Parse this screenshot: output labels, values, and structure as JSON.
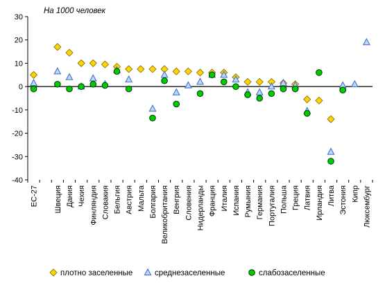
{
  "chart_data": {
    "type": "scatter",
    "unit_label": "На 1000 человек",
    "ylim": [
      -40,
      30
    ],
    "y_ticks": [
      30,
      20,
      10,
      0,
      -10,
      -20,
      -30,
      -40
    ],
    "grid": false,
    "legend_position": "bottom",
    "categories": [
      "ЕС-27",
      "",
      "Швеция",
      "Дания",
      "Чехия",
      "Финляндия",
      "Словакия",
      "Бельгия",
      "Австрия",
      "Мальта",
      "Болгария",
      "Великобритания",
      "Венгрия",
      "Словения",
      "Нидерланды",
      "Франция",
      "Италия",
      "Испания",
      "Румыния",
      "Германия",
      "Португалия",
      "Польша",
      "Греция",
      "Латвия",
      "Ирландия",
      "Литва",
      "Эстония",
      "Кипр",
      "Люксембург"
    ],
    "series": [
      {
        "name": "плотно заселенные",
        "marker": "diamond",
        "color": "#ffd700",
        "values": [
          5,
          null,
          17,
          14.5,
          10,
          10,
          9.5,
          8.5,
          7.5,
          7.5,
          7.5,
          7.5,
          6.5,
          6.5,
          6,
          6,
          6,
          4,
          2,
          2,
          2,
          1.5,
          1,
          -5.5,
          -6,
          -14,
          null,
          null,
          null
        ]
      },
      {
        "name": "среднезаселенные",
        "marker": "triangle",
        "color": "#4472c4",
        "values": [
          1.5,
          null,
          6.5,
          4,
          0,
          3.5,
          1,
          7,
          3,
          null,
          -9.5,
          5,
          -2.5,
          0.5,
          2,
          5,
          5,
          3,
          -2.5,
          -2.5,
          0,
          1.5,
          0.5,
          -10.5,
          null,
          -28,
          0.5,
          1,
          19
        ]
      },
      {
        "name": "слабозаселенные",
        "marker": "circle",
        "color": "#00cc00",
        "values": [
          -1,
          null,
          1,
          -1,
          0,
          1,
          0.5,
          6.5,
          -1,
          null,
          -13.5,
          2.5,
          -7.5,
          null,
          -3,
          5,
          2,
          0,
          -3.5,
          -5,
          -3,
          -1,
          -1,
          -11.5,
          6,
          -32,
          -1.5,
          null,
          null
        ]
      }
    ]
  }
}
